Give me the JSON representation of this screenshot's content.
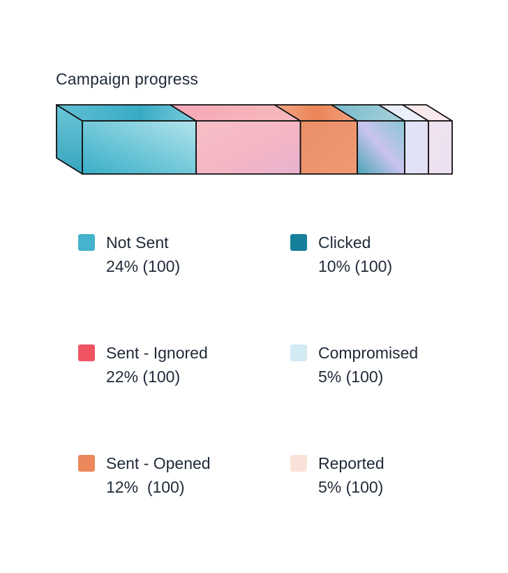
{
  "chart_data": {
    "type": "bar",
    "title": "Campaign progress",
    "series": [
      {
        "name": "Not Sent",
        "value": 24,
        "value_label": "24% (100)",
        "color": "#45b3cc"
      },
      {
        "name": "Sent - Ignored",
        "value": 22,
        "value_label": "22% (100)",
        "color": "#f05463"
      },
      {
        "name": "Sent - Opened",
        "value": 12,
        "value_label": "12%  (100)",
        "color": "#eb875a"
      },
      {
        "name": "Clicked",
        "value": 10,
        "value_label": "10% (100)",
        "color": "#14809a"
      },
      {
        "name": "Compromised",
        "value": 5,
        "value_label": "5% (100)",
        "color": "#d2eaf2"
      },
      {
        "name": "Reported",
        "value": 5,
        "value_label": "5% (100)",
        "color": "#fbe2d9"
      }
    ],
    "legend_position": "bottom"
  }
}
